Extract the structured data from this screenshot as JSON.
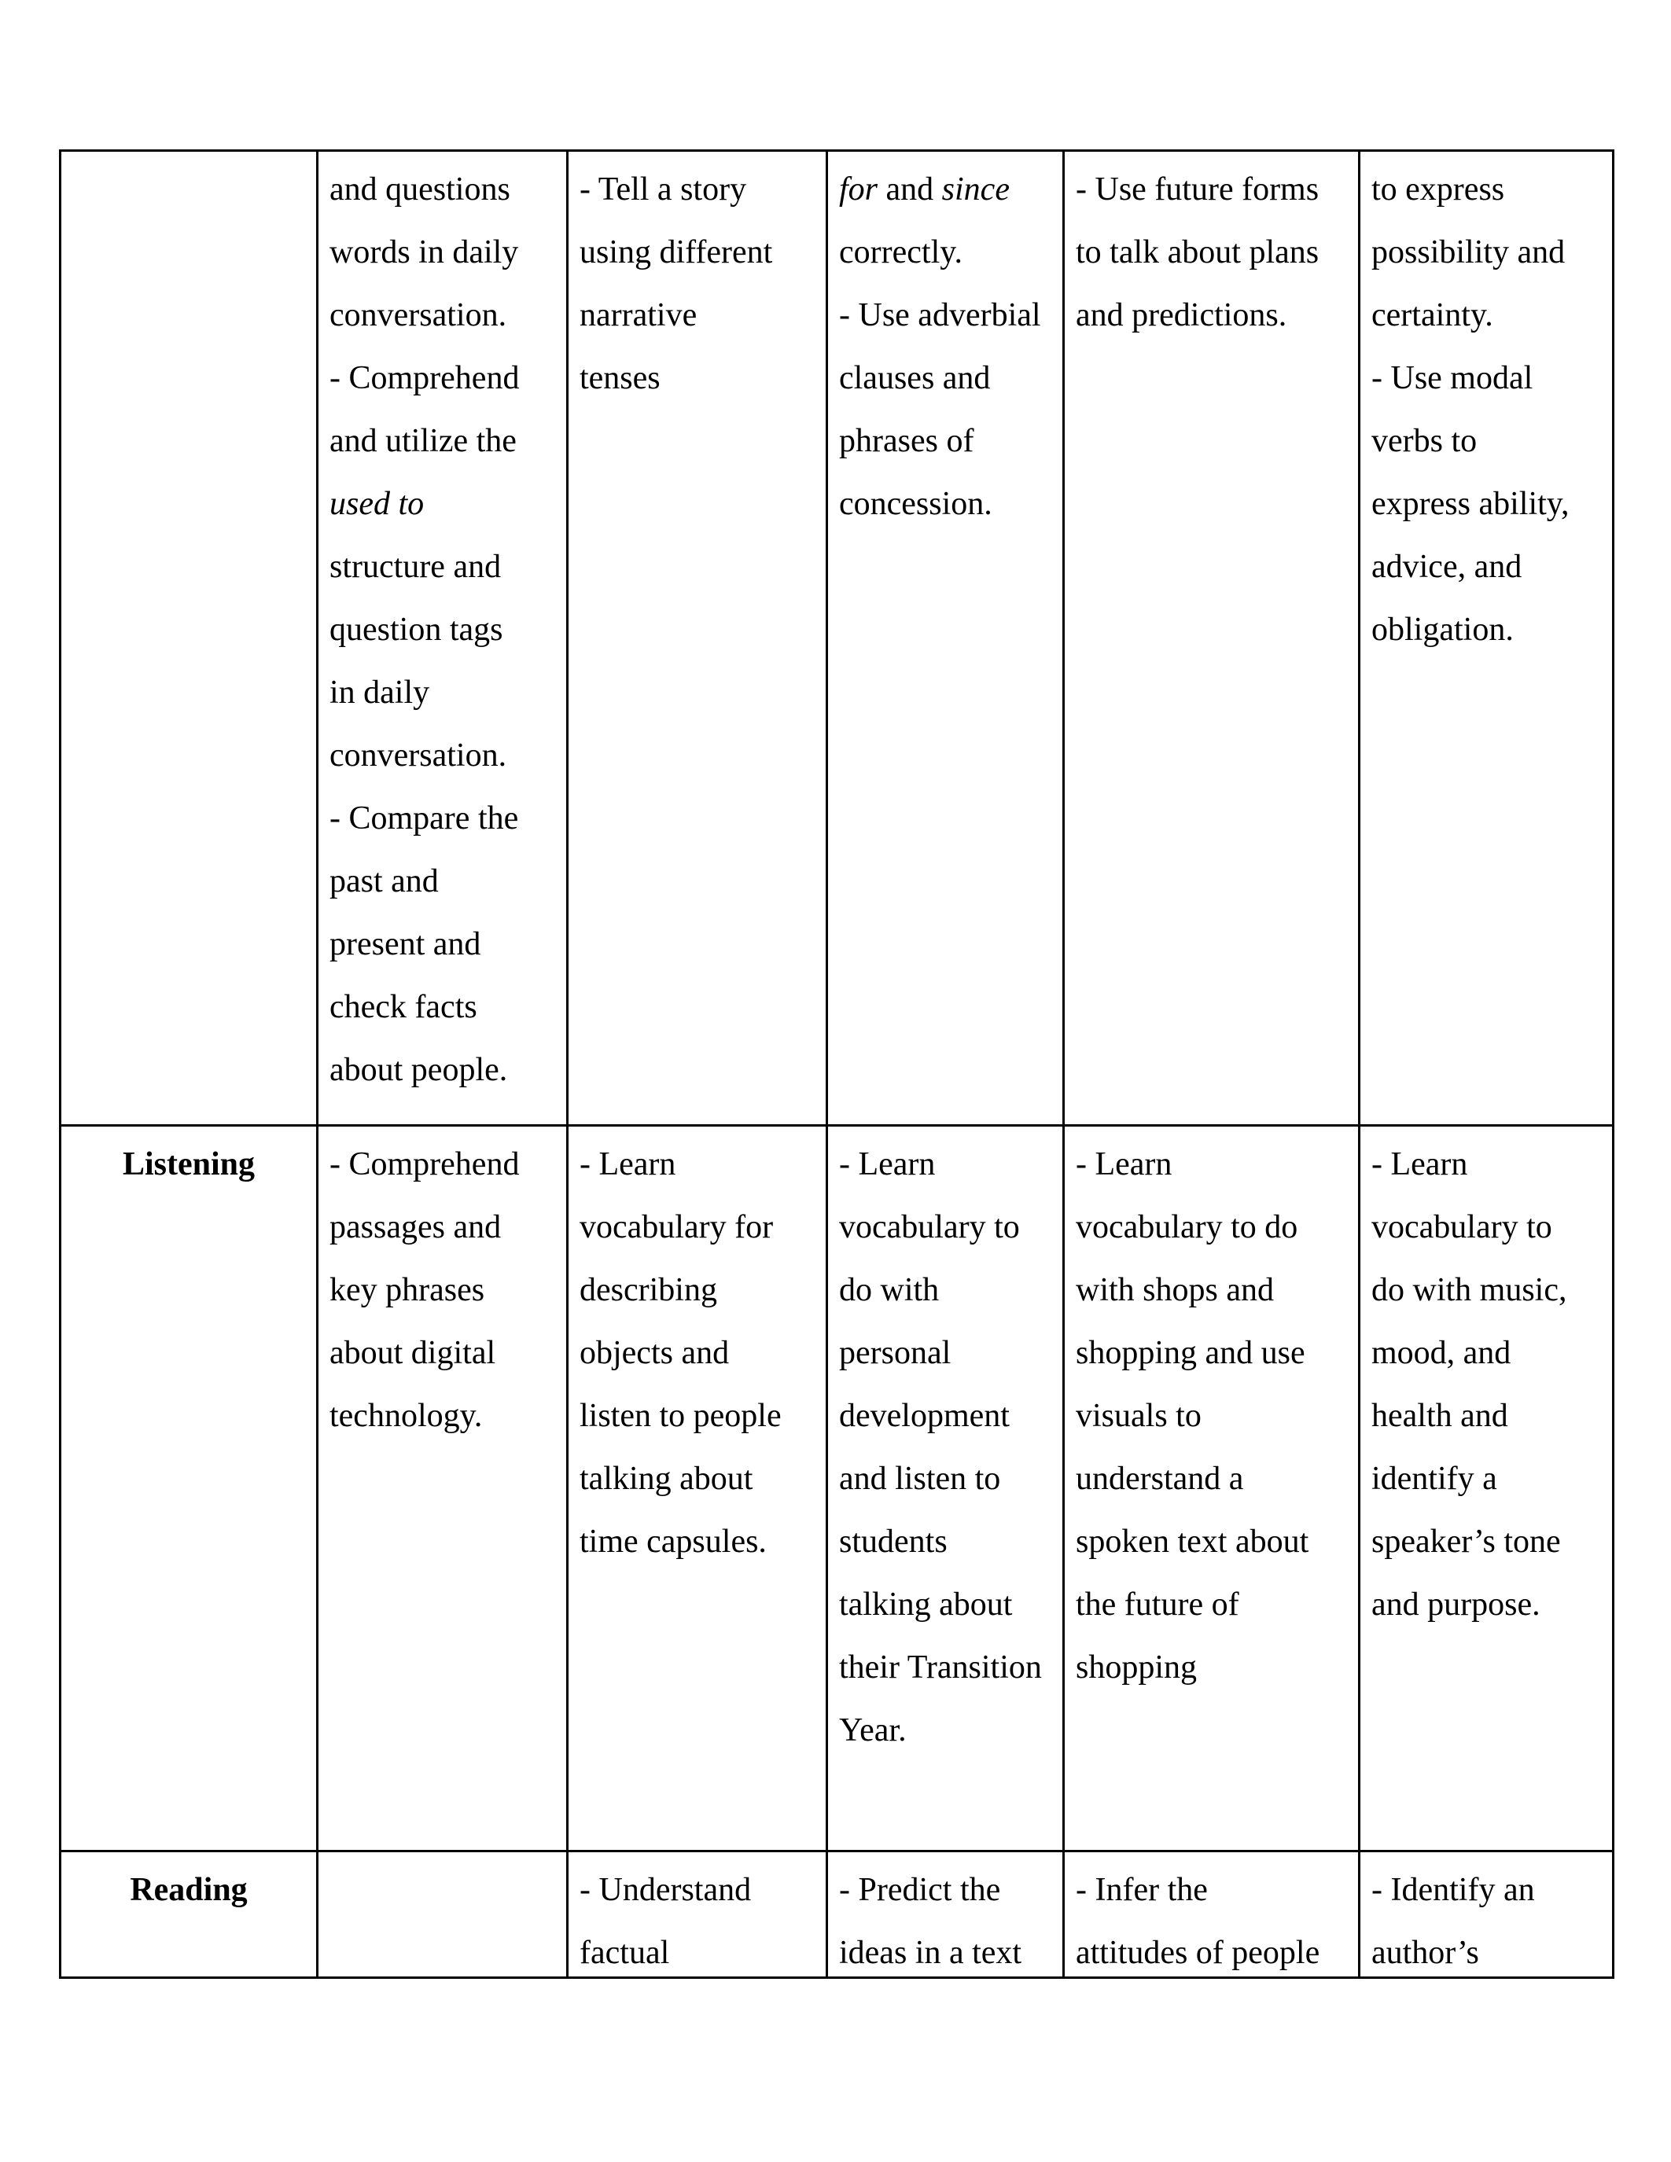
{
  "page": {
    "background_color": "#ffffff",
    "text_color": "#000000",
    "border_color": "#000000"
  },
  "table": {
    "rows": [
      {
        "header": "",
        "cells": [
          {
            "lines": [
              [
                "and questions"
              ],
              [
                "words in daily"
              ],
              [
                "conversation."
              ],
              [
                "- Comprehend"
              ],
              [
                "and utilize the"
              ],
              [
                {
                  "t": "used to",
                  "i": true
                }
              ],
              [
                "structure and"
              ],
              [
                "question tags"
              ],
              [
                "in daily"
              ],
              [
                "conversation."
              ],
              [
                "- Compare the"
              ],
              [
                "past and"
              ],
              [
                "present and"
              ],
              [
                "check facts"
              ],
              [
                "about people."
              ]
            ]
          },
          {
            "lines": [
              [
                "- Tell a story"
              ],
              [
                "using different"
              ],
              [
                "narrative"
              ],
              [
                "tenses"
              ]
            ]
          },
          {
            "lines": [
              [
                {
                  "t": "for",
                  "i": true
                },
                " and ",
                {
                  "t": "since",
                  "i": true
                }
              ],
              [
                "correctly."
              ],
              [
                "- Use adverbial"
              ],
              [
                "clauses and"
              ],
              [
                "phrases of"
              ],
              [
                "concession."
              ]
            ]
          },
          {
            "lines": [
              [
                "- Use future forms"
              ],
              [
                "to talk about plans"
              ],
              [
                "and predictions."
              ]
            ]
          },
          {
            "lines": [
              [
                "to express"
              ],
              [
                "possibility and"
              ],
              [
                "certainty."
              ],
              [
                "- Use modal"
              ],
              [
                "verbs to"
              ],
              [
                "express ability,"
              ],
              [
                "advice, and"
              ],
              [
                "obligation."
              ]
            ]
          }
        ]
      },
      {
        "header": "Listening",
        "cells": [
          {
            "lines": [
              [
                "- Comprehend"
              ],
              [
                "passages and"
              ],
              [
                "key phrases"
              ],
              [
                "about digital"
              ],
              [
                "technology."
              ]
            ]
          },
          {
            "lines": [
              [
                "- Learn"
              ],
              [
                "vocabulary for"
              ],
              [
                "describing"
              ],
              [
                "objects and"
              ],
              [
                "listen to people"
              ],
              [
                "talking about"
              ],
              [
                "time capsules."
              ]
            ]
          },
          {
            "lines": [
              [
                "- Learn"
              ],
              [
                "vocabulary to"
              ],
              [
                "do with"
              ],
              [
                "personal"
              ],
              [
                "development"
              ],
              [
                "and listen to"
              ],
              [
                "students"
              ],
              [
                "talking about"
              ],
              [
                "their Transition"
              ],
              [
                "Year."
              ]
            ]
          },
          {
            "lines": [
              [
                "- Learn"
              ],
              [
                "vocabulary to do"
              ],
              [
                "with shops and"
              ],
              [
                "shopping and use"
              ],
              [
                "visuals to"
              ],
              [
                "understand a"
              ],
              [
                "spoken text about"
              ],
              [
                "the future of"
              ],
              [
                "shopping"
              ]
            ]
          },
          {
            "lines": [
              [
                "- Learn"
              ],
              [
                "vocabulary to"
              ],
              [
                "do with music,"
              ],
              [
                "mood, and"
              ],
              [
                "health and"
              ],
              [
                "identify a"
              ],
              [
                "speaker’s tone"
              ],
              [
                "and purpose."
              ]
            ]
          }
        ]
      },
      {
        "header": "Reading",
        "cells": [
          {
            "lines": []
          },
          {
            "lines": [
              [
                "- Understand"
              ],
              [
                "factual"
              ]
            ]
          },
          {
            "lines": [
              [
                "- Predict the"
              ],
              [
                "ideas in a text"
              ]
            ]
          },
          {
            "lines": [
              [
                "- Infer the"
              ],
              [
                "attitudes of people"
              ]
            ]
          },
          {
            "lines": [
              [
                "- Identify an"
              ],
              [
                "author’s"
              ]
            ]
          }
        ]
      }
    ]
  }
}
